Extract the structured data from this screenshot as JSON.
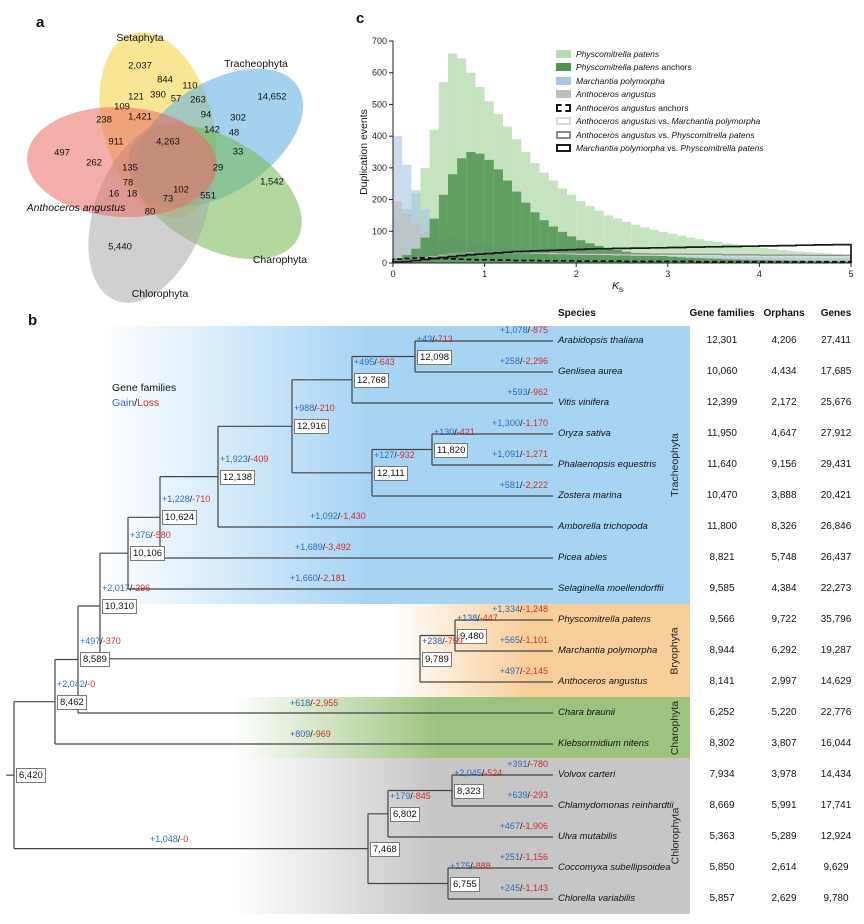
{
  "panels": {
    "a": "a",
    "b": "b",
    "c": "c"
  },
  "venn": {
    "sets": [
      {
        "name": "Setaphyta",
        "color": "#f4d23d"
      },
      {
        "name": "Tracheophyta",
        "color": "#5aade0"
      },
      {
        "name": "Anthoceros angustus",
        "color": "#e96b62"
      },
      {
        "name": "Charophyta",
        "color": "#74b84e"
      },
      {
        "name": "Chlorophyta",
        "color": "#a9a9a9"
      }
    ],
    "counts": [
      "2,037",
      "14,652",
      "844",
      "110",
      "121",
      "390",
      "57",
      "263",
      "109",
      "238",
      "1,421",
      "94",
      "302",
      "142",
      "48",
      "911",
      "4,263",
      "33",
      "497",
      "262",
      "135",
      "29",
      "1,542",
      "78",
      "16",
      "18",
      "102",
      "73",
      "551",
      "80",
      "5,440"
    ]
  },
  "chart_data": {
    "type": "bar",
    "title": "",
    "xlabel": "Ks",
    "xlabel_main": "K",
    "xlabel_sub": "s",
    "ylabel": "Duplication events",
    "xlim": [
      0,
      5
    ],
    "ylim": [
      0,
      700
    ],
    "xticks": [
      0,
      1,
      2,
      3,
      4,
      5
    ],
    "yticks": [
      0,
      100,
      200,
      300,
      400,
      500,
      600,
      700
    ],
    "bin_width": 0.1,
    "legend_position": "upper right",
    "series": [
      {
        "name": "Physcomitrella patens",
        "style": "fill",
        "color": "#b5dcae",
        "values": [
          140,
          170,
          220,
          300,
          420,
          570,
          660,
          645,
          600,
          555,
          510,
          470,
          430,
          390,
          350,
          315,
          285,
          260,
          235,
          215,
          195,
          180,
          165,
          150,
          140,
          130,
          120,
          112,
          105,
          98,
          92,
          86,
          80,
          75,
          70,
          66,
          62,
          58,
          54,
          50,
          47,
          44,
          41,
          38,
          36,
          34,
          32,
          30,
          28,
          26
        ]
      },
      {
        "name": "Physcomitrella patens anchors",
        "style": "fill",
        "color": "#4e9450",
        "values": [
          15,
          25,
          45,
          80,
          140,
          215,
          280,
          330,
          350,
          345,
          325,
          295,
          260,
          225,
          190,
          160,
          135,
          115,
          98,
          84,
          72,
          62,
          54,
          47,
          41,
          36,
          32,
          28,
          25,
          22,
          20,
          18,
          16,
          15,
          14,
          13,
          12,
          11,
          10,
          9,
          9,
          8,
          8,
          7,
          7,
          6,
          6,
          5,
          5,
          5
        ]
      },
      {
        "name": "Marchantia polymorpha",
        "style": "fill",
        "color": "#aac7e6",
        "values": [
          400,
          310,
          230,
          170,
          130,
          105,
          88,
          76,
          68,
          62,
          57,
          53,
          49,
          46,
          43,
          41,
          39,
          37,
          35,
          34,
          32,
          31,
          30,
          29,
          28,
          27,
          26,
          25,
          25,
          24,
          24,
          23,
          23,
          22,
          22,
          21,
          21,
          20,
          20,
          20,
          19,
          19,
          19,
          18,
          18,
          18,
          17,
          17,
          17,
          17
        ]
      },
      {
        "name": "Anthoceros angustus",
        "style": "fill",
        "color": "#bdbdbd",
        "values": [
          195,
          155,
          125,
          100,
          85,
          72,
          63,
          56,
          50,
          46,
          42,
          39,
          36,
          34,
          32,
          30,
          28,
          27,
          26,
          25,
          24,
          23,
          22,
          21,
          20,
          20,
          19,
          19,
          18,
          18,
          17,
          17,
          16,
          16,
          15,
          15,
          14,
          14,
          13,
          13,
          12,
          12,
          11,
          11,
          10,
          10,
          10,
          9,
          9,
          9
        ]
      },
      {
        "name": "Anthoceros angustus anchors",
        "style": "dashed-outline",
        "color": "#111111",
        "values": [
          12,
          14,
          15,
          16,
          15,
          14,
          13,
          12,
          11,
          10,
          10,
          9,
          9,
          8,
          8,
          8,
          7,
          7,
          7,
          7,
          6,
          6,
          6,
          6,
          6,
          5,
          5,
          5,
          5,
          5,
          5,
          5,
          5,
          4,
          4,
          4,
          4,
          4,
          4,
          4,
          4,
          4,
          4,
          4,
          4,
          4,
          4,
          4,
          4,
          4
        ]
      },
      {
        "name": "Anthoceros angustus vs. Marchantia polymorpha",
        "style": "outline",
        "color": "#d9d9d9",
        "values": [
          5,
          8,
          12,
          16,
          20,
          24,
          27,
          30,
          32,
          33,
          34,
          34,
          34,
          33,
          33,
          32,
          31,
          30,
          30,
          29,
          28,
          28,
          27,
          27,
          26,
          26,
          25,
          25,
          25,
          24,
          24,
          24,
          23,
          23,
          23,
          22,
          22,
          22,
          21,
          21,
          21,
          20,
          20,
          20,
          19,
          19,
          19,
          18,
          18,
          18
        ]
      },
      {
        "name": "Anthoceros angustus vs. Physcomitrella patens",
        "style": "outline",
        "color": "#8c8c8c",
        "values": [
          4,
          6,
          10,
          14,
          18,
          22,
          26,
          29,
          31,
          33,
          34,
          35,
          35,
          35,
          34,
          34,
          33,
          33,
          32,
          32,
          31,
          31,
          30,
          30,
          30,
          29,
          29,
          29,
          28,
          28,
          28,
          28,
          27,
          27,
          27,
          27,
          26,
          26,
          26,
          26,
          25,
          25,
          25,
          25,
          25,
          24,
          24,
          24,
          24,
          24
        ]
      },
      {
        "name": "Marchantia polymorpha vs. Physcomitrella patens",
        "style": "outline",
        "color": "#1a1a1a",
        "values": [
          3,
          5,
          8,
          11,
          14,
          17,
          20,
          23,
          26,
          28,
          30,
          32,
          34,
          36,
          37,
          38,
          39,
          40,
          41,
          42,
          43,
          44,
          45,
          45,
          46,
          46,
          47,
          47,
          48,
          48,
          49,
          49,
          50,
          50,
          51,
          51,
          52,
          52,
          53,
          53,
          54,
          54,
          55,
          55,
          56,
          56,
          57,
          57,
          58,
          58
        ]
      }
    ]
  },
  "tree": {
    "legend": {
      "line1": "Gene families",
      "gain": "Gain",
      "slash": "/",
      "loss": "Loss"
    },
    "clades": [
      {
        "name": "Tracheophyta",
        "color": "#a8d4f4"
      },
      {
        "name": "Bryophyta",
        "color": "#f8cf9b"
      },
      {
        "name": "Charophyta",
        "color": "#9cc47e"
      },
      {
        "name": "Chlorophyta",
        "color": "#c6c6c6"
      }
    ],
    "nodes": {
      "n12098": "12,098",
      "n12768": "12,768",
      "n11820": "11,820",
      "n12111": "12,111",
      "n12916": "12,916",
      "n12138": "12,138",
      "n10624": "10,624",
      "n10106": "10,106",
      "n10310": "10,310",
      "n9480": "9,480",
      "n9789": "9,789",
      "n8589": "8,589",
      "n8462": "8,462",
      "n6420": "6,420",
      "n8323": "8,323",
      "n6802": "6,802",
      "n6755": "6,755",
      "n7468": "7,468"
    },
    "branches": {
      "ara": {
        "gain": "+1,078",
        "loss": "-875"
      },
      "gen": {
        "gain": "+258",
        "loss": "-2,296"
      },
      "vit": {
        "gain": "+593",
        "loss": "-962"
      },
      "ory": {
        "gain": "+1,300",
        "loss": "-1,170"
      },
      "pha": {
        "gain": "+1,091",
        "loss": "-1,271"
      },
      "zos": {
        "gain": "+581",
        "loss": "-2,222"
      },
      "amb": {
        "gain": "+1,092",
        "loss": "-1,430"
      },
      "pic": {
        "gain": "+1,689",
        "loss": "-3,492"
      },
      "sel": {
        "gain": "+1,660",
        "loss": "-2,181"
      },
      "phy": {
        "gain": "+1,334",
        "loss": "-1,248"
      },
      "mar": {
        "gain": "+565",
        "loss": "-1,101"
      },
      "ant": {
        "gain": "+497",
        "loss": "-2,145"
      },
      "cha": {
        "gain": "+618",
        "loss": "-2,955"
      },
      "kle": {
        "gain": "+809",
        "loss": "-969"
      },
      "vol": {
        "gain": "+391",
        "loss": "-780"
      },
      "chl": {
        "gain": "+639",
        "loss": "-293"
      },
      "ulv": {
        "gain": "+467",
        "loss": "-1,906"
      },
      "coc": {
        "gain": "+251",
        "loss": "-1,156"
      },
      "chv": {
        "gain": "+245",
        "loss": "-1,143"
      },
      "n12098": {
        "gain": "+43",
        "loss": "-713"
      },
      "n12768": {
        "gain": "+495",
        "loss": "-643"
      },
      "n11820": {
        "gain": "+130",
        "loss": "-421"
      },
      "n12111": {
        "gain": "+127",
        "loss": "-932"
      },
      "n12916": {
        "gain": "+988",
        "loss": "-210"
      },
      "n12138": {
        "gain": "+1,923",
        "loss": "-409"
      },
      "n10624": {
        "gain": "+1,228",
        "loss": "-710"
      },
      "n10106": {
        "gain": "+376",
        "loss": "-580"
      },
      "n10310": {
        "gain": "+2,017",
        "loss": "-296"
      },
      "n9480": {
        "gain": "+138",
        "loss": "-447"
      },
      "n9789": {
        "gain": "+238",
        "loss": "-759"
      },
      "n8589": {
        "gain": "+497",
        "loss": "-370"
      },
      "n8462": {
        "gain": "+2,042",
        "loss": "-0"
      },
      "n8323": {
        "gain": "+2,045",
        "loss": "-524"
      },
      "n6802": {
        "gain": "+179",
        "loss": "-845"
      },
      "n6755": {
        "gain": "+175",
        "loss": "-888"
      },
      "n7468": {
        "gain": "+1,048",
        "loss": "-0"
      }
    }
  },
  "table": {
    "headers": [
      "Species",
      "Gene families",
      "Orphans",
      "Genes"
    ],
    "rows": [
      {
        "name": "Arabidopsis thaliana",
        "families": "12,301",
        "orphans": "4,206",
        "genes": "27,411"
      },
      {
        "name": "Genlisea aurea",
        "families": "10,060",
        "orphans": "4,434",
        "genes": "17,685"
      },
      {
        "name": "Vitis vinifera",
        "families": "12,399",
        "orphans": "2,172",
        "genes": "25,676"
      },
      {
        "name": "Oryza sativa",
        "families": "11,950",
        "orphans": "4,647",
        "genes": "27,912"
      },
      {
        "name": "Phalaenopsis equestris",
        "families": "11,640",
        "orphans": "9,156",
        "genes": "29,431"
      },
      {
        "name": "Zostera marina",
        "families": "10,470",
        "orphans": "3,888",
        "genes": "20,421"
      },
      {
        "name": "Amborella trichopoda",
        "families": "11,800",
        "orphans": "8,326",
        "genes": "26,846"
      },
      {
        "name": "Picea abies",
        "families": "8,821",
        "orphans": "5,748",
        "genes": "26,437"
      },
      {
        "name": "Selaginella moellendorffii",
        "families": "9,585",
        "orphans": "4,384",
        "genes": "22,273"
      },
      {
        "name": "Physcomitrella patens",
        "families": "9,566",
        "orphans": "9,722",
        "genes": "35,796"
      },
      {
        "name": "Marchantia polymorpha",
        "families": "8,944",
        "orphans": "6,292",
        "genes": "19,287"
      },
      {
        "name": "Anthoceros angustus",
        "families": "8,141",
        "orphans": "2,997",
        "genes": "14,629"
      },
      {
        "name": "Chara braunii",
        "families": "6,252",
        "orphans": "5,220",
        "genes": "22,776"
      },
      {
        "name": "Klebsormidium nitens",
        "families": "8,302",
        "orphans": "3,807",
        "genes": "16,044"
      },
      {
        "name": "Volvox carteri",
        "families": "7,934",
        "orphans": "3,978",
        "genes": "14,434"
      },
      {
        "name": "Chlamydomonas reinhardtii",
        "families": "8,669",
        "orphans": "5,991",
        "genes": "17,741"
      },
      {
        "name": "Ulva mutabilis",
        "families": "5,363",
        "orphans": "5,289",
        "genes": "12,924"
      },
      {
        "name": "Coccomyxa subellipsoidea",
        "families": "5,850",
        "orphans": "2,614",
        "genes": "9,629"
      },
      {
        "name": "Chlorella variabilis",
        "families": "5,857",
        "orphans": "2,629",
        "genes": "9,780"
      }
    ]
  }
}
